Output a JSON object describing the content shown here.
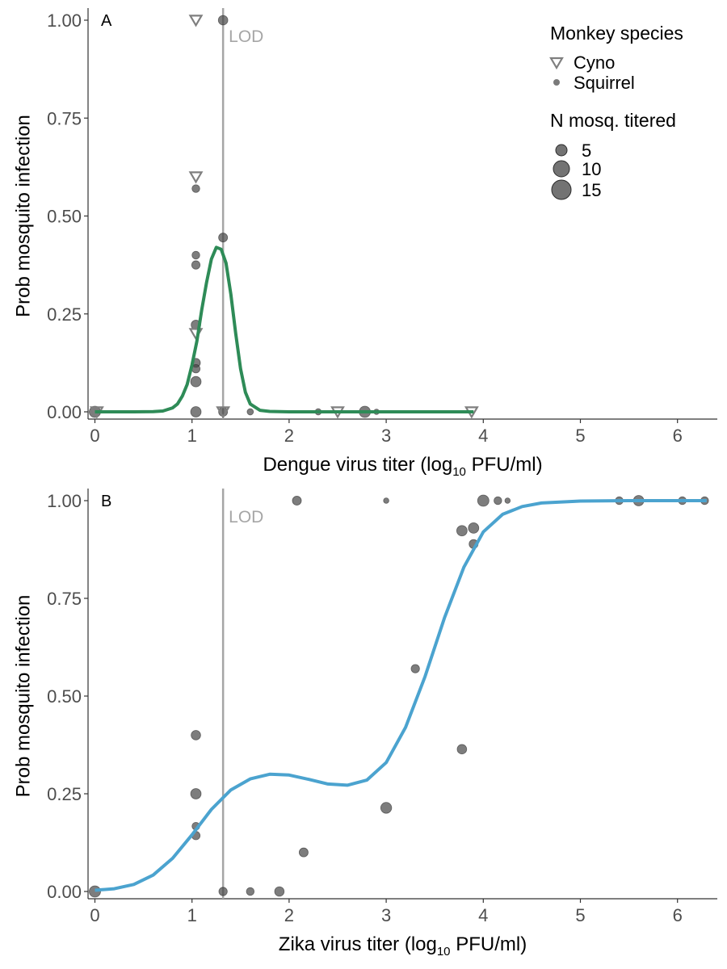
{
  "legend": {
    "species_title": "Monkey species",
    "species": [
      {
        "label": "Cyno",
        "shape": "triangle-down-open"
      },
      {
        "label": "Squirrel",
        "shape": "circle"
      }
    ],
    "size_title": "N mosq. titered",
    "sizes": [
      {
        "label": "5",
        "n": 5
      },
      {
        "label": "10",
        "n": 10
      },
      {
        "label": "15",
        "n": 15
      }
    ]
  },
  "chart_data": [
    {
      "type": "scatter",
      "panel_label": "A",
      "xlabel_prefix": "Dengue virus titer (log",
      "xlabel_sub": "10",
      "xlabel_suffix": " PFU/ml)",
      "ylabel": "Prob mosquito infection",
      "xlim": [
        0,
        6.4
      ],
      "ylim": [
        0,
        1
      ],
      "x_ticks": [
        0,
        1,
        2,
        3,
        4,
        5,
        6
      ],
      "x_tick_labels": [
        "0",
        "1",
        "2",
        "3",
        "4",
        "5",
        "6"
      ],
      "y_ticks": [
        0,
        0.25,
        0.5,
        0.75,
        1
      ],
      "y_tick_labels": [
        "0.00",
        "0.25",
        "0.50",
        "0.75",
        "1.00"
      ],
      "lod": {
        "x": 1.32,
        "label": "LOD"
      },
      "fit_color": "#2e8b57",
      "fit_curve": [
        [
          0,
          0
        ],
        [
          0.4,
          0
        ],
        [
          0.6,
          0.0005
        ],
        [
          0.7,
          0.002
        ],
        [
          0.8,
          0.01
        ],
        [
          0.85,
          0.02
        ],
        [
          0.9,
          0.04
        ],
        [
          0.95,
          0.07
        ],
        [
          1.0,
          0.12
        ],
        [
          1.05,
          0.18
        ],
        [
          1.1,
          0.26
        ],
        [
          1.15,
          0.33
        ],
        [
          1.2,
          0.39
        ],
        [
          1.25,
          0.42
        ],
        [
          1.3,
          0.415
        ],
        [
          1.35,
          0.38
        ],
        [
          1.4,
          0.3
        ],
        [
          1.45,
          0.2
        ],
        [
          1.5,
          0.11
        ],
        [
          1.55,
          0.05
        ],
        [
          1.6,
          0.02
        ],
        [
          1.7,
          0.004
        ],
        [
          1.8,
          0.001
        ],
        [
          2.0,
          0
        ],
        [
          3.0,
          0
        ],
        [
          3.9,
          0
        ]
      ],
      "points": [
        {
          "species": "Squirrel",
          "x": 0.0,
          "y": 0.0,
          "n": 12
        },
        {
          "species": "Cyno",
          "x": 0.02,
          "y": 0.0,
          "n": 8
        },
        {
          "species": "Cyno",
          "x": 1.04,
          "y": 1.0,
          "n": 7
        },
        {
          "species": "Squirrel",
          "x": 1.32,
          "y": 1.0,
          "n": 8
        },
        {
          "species": "Cyno",
          "x": 1.04,
          "y": 0.6,
          "n": 7
        },
        {
          "species": "Squirrel",
          "x": 1.04,
          "y": 0.57,
          "n": 5
        },
        {
          "species": "Squirrel",
          "x": 1.32,
          "y": 0.445,
          "n": 7
        },
        {
          "species": "Squirrel",
          "x": 1.04,
          "y": 0.4,
          "n": 5
        },
        {
          "species": "Squirrel",
          "x": 1.04,
          "y": 0.375,
          "n": 6
        },
        {
          "species": "Squirrel",
          "x": 1.04,
          "y": 0.222,
          "n": 8
        },
        {
          "species": "Cyno",
          "x": 1.04,
          "y": 0.2,
          "n": 7
        },
        {
          "species": "Squirrel",
          "x": 1.04,
          "y": 0.125,
          "n": 7
        },
        {
          "species": "Squirrel",
          "x": 1.04,
          "y": 0.11,
          "n": 6
        },
        {
          "species": "Squirrel",
          "x": 1.04,
          "y": 0.077,
          "n": 10
        },
        {
          "species": "Squirrel",
          "x": 1.04,
          "y": 0.0,
          "n": 10
        },
        {
          "species": "Squirrel",
          "x": 1.32,
          "y": 0.0,
          "n": 7
        },
        {
          "species": "Cyno",
          "x": 1.32,
          "y": 0.0,
          "n": 4
        },
        {
          "species": "Squirrel",
          "x": 1.6,
          "y": 0.0,
          "n": 3
        },
        {
          "species": "Squirrel",
          "x": 2.3,
          "y": 0.0,
          "n": 3
        },
        {
          "species": "Cyno",
          "x": 2.5,
          "y": 0.0,
          "n": 7
        },
        {
          "species": "Squirrel",
          "x": 2.78,
          "y": 0.0,
          "n": 12
        },
        {
          "species": "Squirrel",
          "x": 2.9,
          "y": 0.0,
          "n": 2
        },
        {
          "species": "Cyno",
          "x": 3.88,
          "y": 0.0,
          "n": 7
        }
      ]
    },
    {
      "type": "scatter",
      "panel_label": "B",
      "xlabel_prefix": "Zika virus titer (log",
      "xlabel_sub": "10",
      "xlabel_suffix": " PFU/ml)",
      "ylabel": "Prob mosquito infection",
      "xlim": [
        0,
        6.4
      ],
      "ylim": [
        0,
        1
      ],
      "x_ticks": [
        0,
        1,
        2,
        3,
        4,
        5,
        6
      ],
      "x_tick_labels": [
        "0",
        "1",
        "2",
        "3",
        "4",
        "5",
        "6"
      ],
      "y_ticks": [
        0,
        0.25,
        0.5,
        0.75,
        1
      ],
      "y_tick_labels": [
        "0.00",
        "0.25",
        "0.50",
        "0.75",
        "1.00"
      ],
      "lod": {
        "x": 1.32,
        "label": "LOD"
      },
      "fit_color": "#4ba3cf",
      "fit_curve": [
        [
          0,
          0.003
        ],
        [
          0.2,
          0.007
        ],
        [
          0.4,
          0.018
        ],
        [
          0.6,
          0.042
        ],
        [
          0.8,
          0.085
        ],
        [
          1.0,
          0.145
        ],
        [
          1.2,
          0.21
        ],
        [
          1.4,
          0.26
        ],
        [
          1.6,
          0.288
        ],
        [
          1.8,
          0.3
        ],
        [
          2.0,
          0.298
        ],
        [
          2.2,
          0.287
        ],
        [
          2.4,
          0.275
        ],
        [
          2.6,
          0.272
        ],
        [
          2.8,
          0.285
        ],
        [
          3.0,
          0.33
        ],
        [
          3.2,
          0.42
        ],
        [
          3.4,
          0.55
        ],
        [
          3.6,
          0.7
        ],
        [
          3.8,
          0.83
        ],
        [
          4.0,
          0.92
        ],
        [
          4.2,
          0.965
        ],
        [
          4.4,
          0.985
        ],
        [
          4.6,
          0.994
        ],
        [
          5.0,
          0.999
        ],
        [
          5.5,
          1.0
        ],
        [
          6.3,
          1.0
        ]
      ],
      "points": [
        {
          "species": "Squirrel",
          "x": 0.0,
          "y": 0.0,
          "n": 12
        },
        {
          "species": "Squirrel",
          "x": 1.04,
          "y": 0.4,
          "n": 8
        },
        {
          "species": "Squirrel",
          "x": 1.04,
          "y": 0.25,
          "n": 10
        },
        {
          "species": "Squirrel",
          "x": 1.04,
          "y": 0.167,
          "n": 5
        },
        {
          "species": "Squirrel",
          "x": 1.04,
          "y": 0.143,
          "n": 6
        },
        {
          "species": "Squirrel",
          "x": 1.32,
          "y": 0.0,
          "n": 6
        },
        {
          "species": "Squirrel",
          "x": 1.6,
          "y": 0.0,
          "n": 5
        },
        {
          "species": "Squirrel",
          "x": 1.9,
          "y": 0.0,
          "n": 8
        },
        {
          "species": "Squirrel",
          "x": 2.08,
          "y": 1.0,
          "n": 7
        },
        {
          "species": "Squirrel",
          "x": 2.15,
          "y": 0.1,
          "n": 7
        },
        {
          "species": "Squirrel",
          "x": 3.0,
          "y": 0.214,
          "n": 11
        },
        {
          "species": "Squirrel",
          "x": 3.0,
          "y": 1.0,
          "n": 2
        },
        {
          "species": "Squirrel",
          "x": 3.3,
          "y": 0.57,
          "n": 6
        },
        {
          "species": "Squirrel",
          "x": 3.78,
          "y": 0.364,
          "n": 8
        },
        {
          "species": "Squirrel",
          "x": 3.78,
          "y": 0.923,
          "n": 10
        },
        {
          "species": "Squirrel",
          "x": 3.9,
          "y": 0.93,
          "n": 10
        },
        {
          "species": "Squirrel",
          "x": 3.9,
          "y": 0.889,
          "n": 7
        },
        {
          "species": "Squirrel",
          "x": 4.0,
          "y": 1.0,
          "n": 12
        },
        {
          "species": "Squirrel",
          "x": 4.15,
          "y": 1.0,
          "n": 5
        },
        {
          "species": "Squirrel",
          "x": 4.25,
          "y": 1.0,
          "n": 2
        },
        {
          "species": "Squirrel",
          "x": 5.4,
          "y": 1.0,
          "n": 5
        },
        {
          "species": "Squirrel",
          "x": 5.6,
          "y": 1.0,
          "n": 10
        },
        {
          "species": "Squirrel",
          "x": 6.05,
          "y": 1.0,
          "n": 5
        },
        {
          "species": "Squirrel",
          "x": 6.28,
          "y": 1.0,
          "n": 5
        }
      ]
    }
  ]
}
